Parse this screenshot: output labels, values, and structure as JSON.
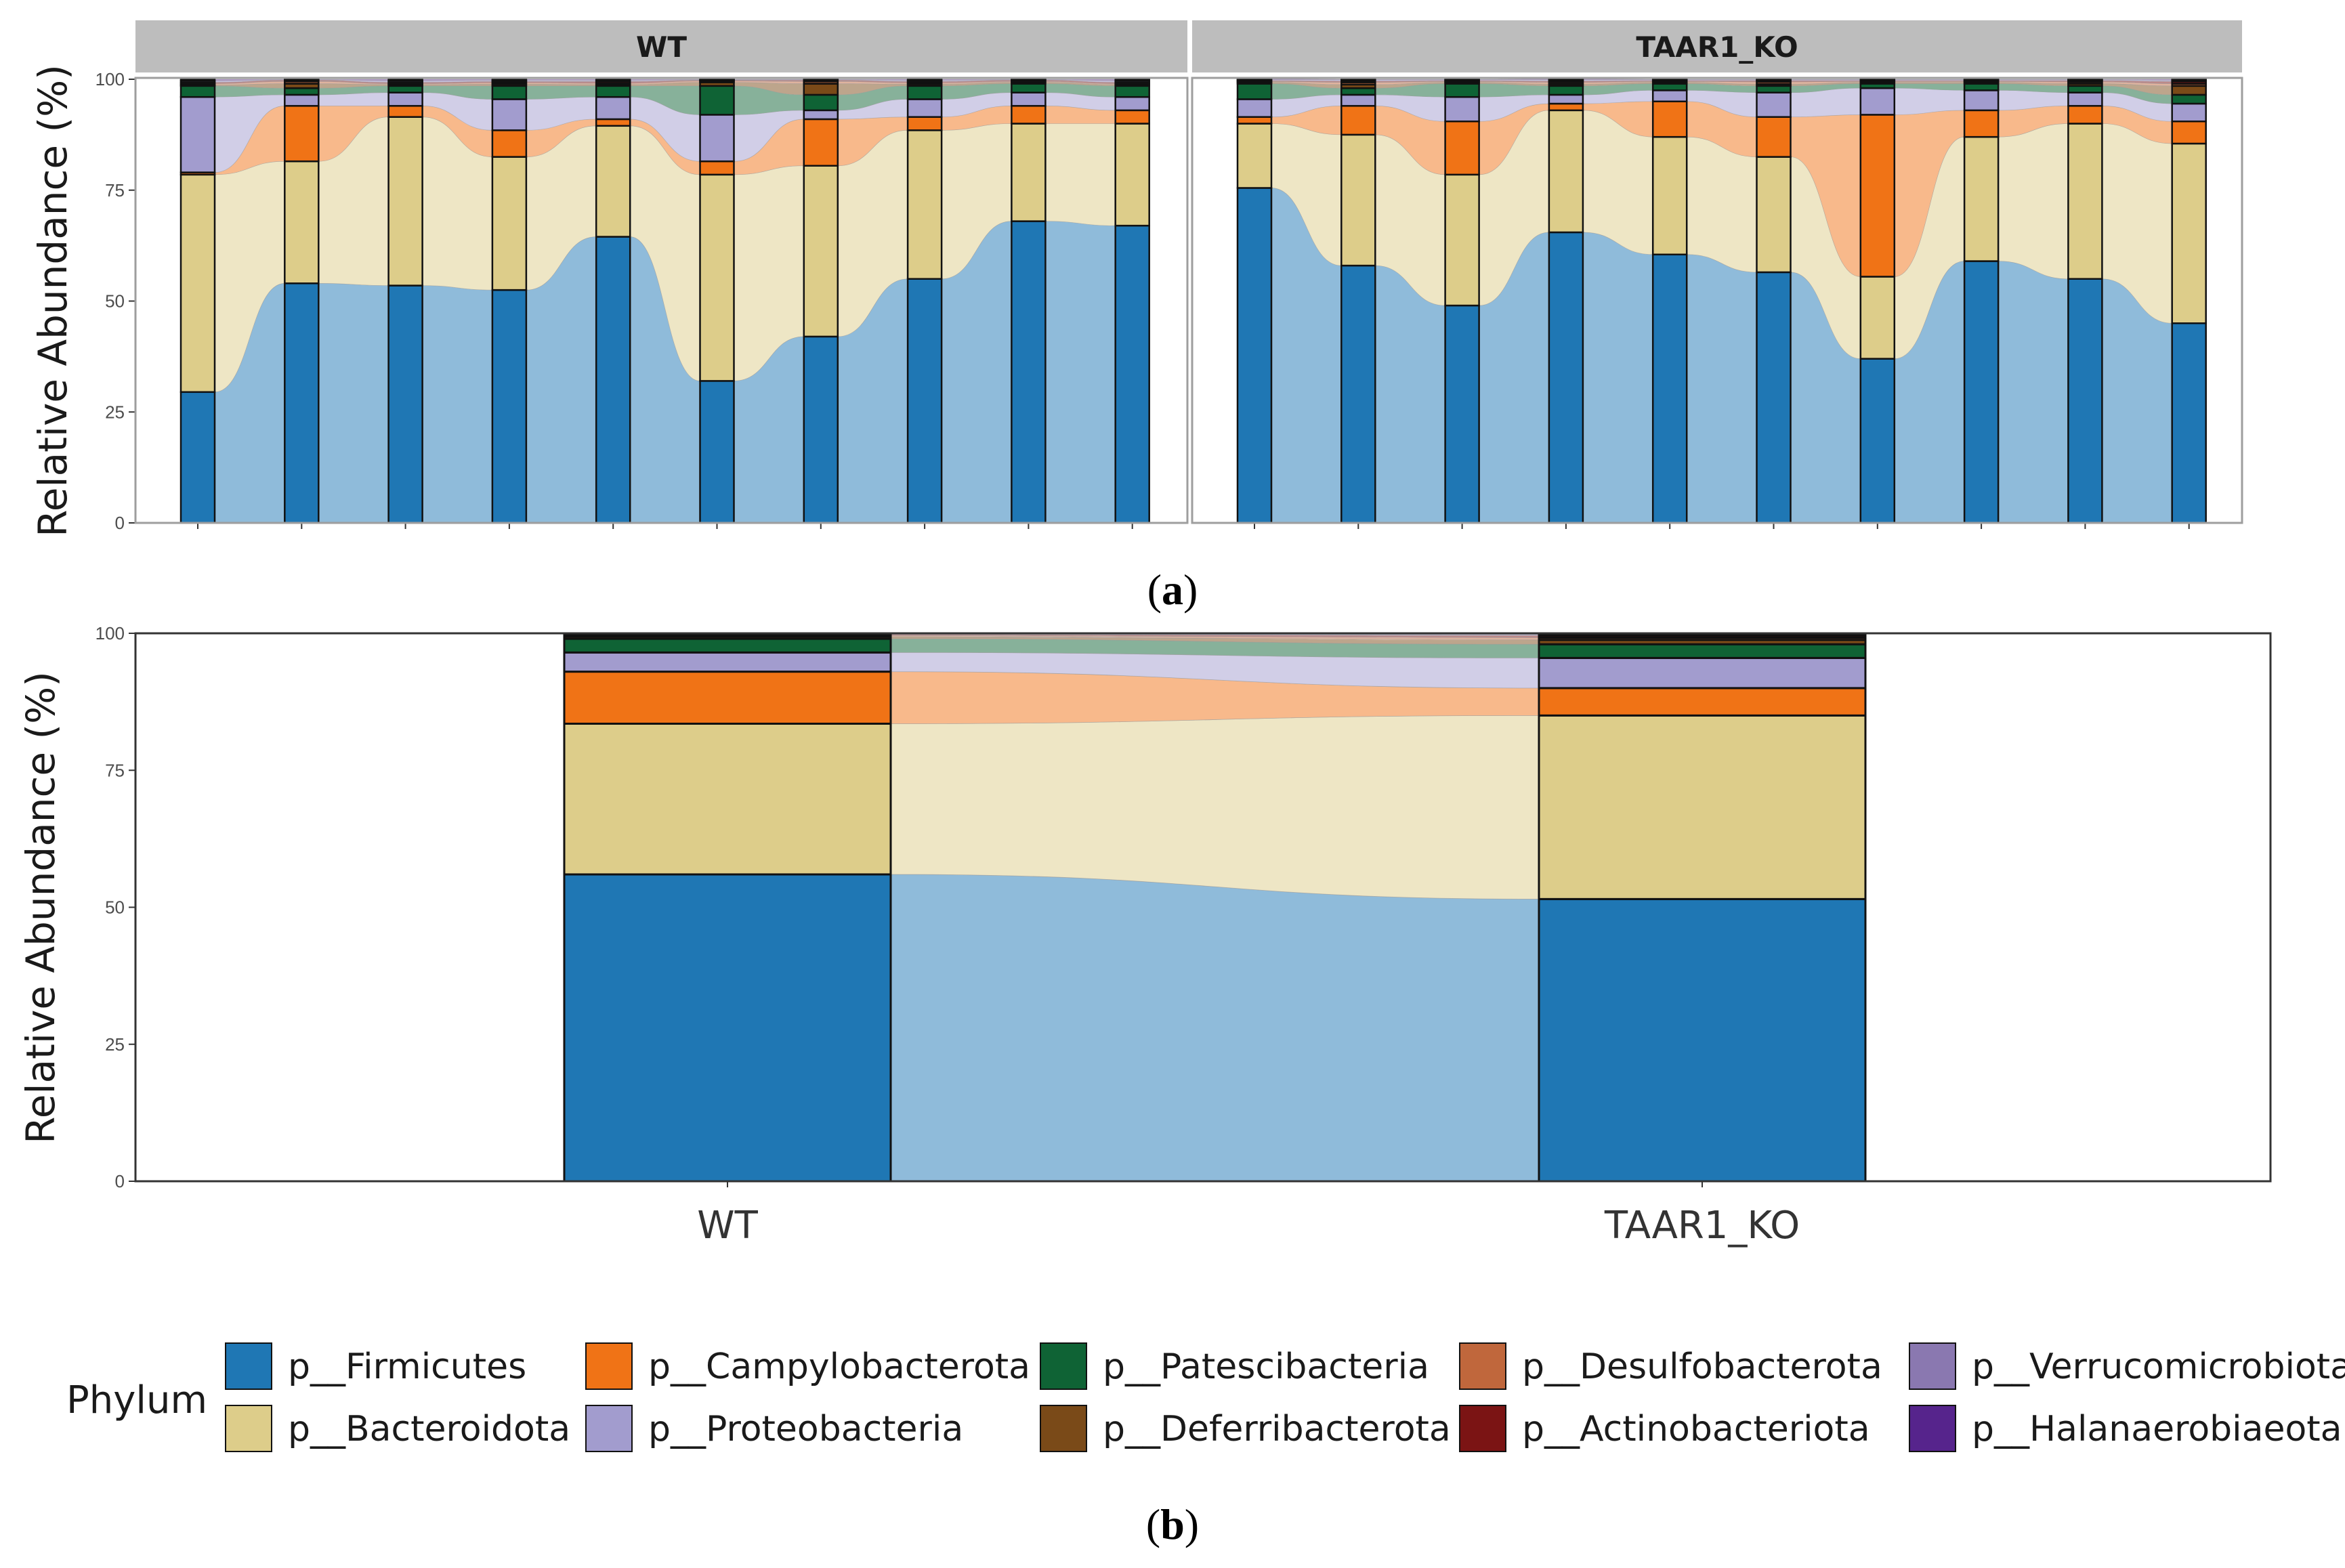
{
  "phyla": [
    "p__Firmicutes",
    "p__Bacteroidota",
    "p__Campylobacterota",
    "p__Proteobacteria",
    "p__Patescibacteria",
    "p__Deferribacterota",
    "p__Desulfobacterota",
    "p__Actinobacteriota",
    "p__Verrucomicrobiota",
    "p__Halanaerobiaeota"
  ],
  "colors": {
    "p__Firmicutes": "#1f77b4",
    "p__Bacteroidota": "#ddcd8a",
    "p__Campylobacterota": "#f07316",
    "p__Proteobacteria": "#a29cce",
    "p__Patescibacteria": "#0f6335",
    "p__Deferribacterota": "#7a4a18",
    "p__Desulfobacterota": "#c0673c",
    "p__Actinobacteriota": "#7b1414",
    "p__Verrucomicrobiota": "#8a78b0",
    "p__Halanaerobiaeota": "#56248c"
  },
  "panel_labels": {
    "a_open": "(",
    "a_letter": "a",
    "a_close": ")",
    "b_open": "(",
    "b_letter": "b",
    "b_close": ")"
  },
  "legend": {
    "title": "Phylum",
    "order": [
      "p__Firmicutes",
      "p__Bacteroidota",
      "p__Campylobacterota",
      "p__Proteobacteria",
      "p__Patescibacteria",
      "p__Deferribacterota",
      "p__Desulfobacterota",
      "p__Actinobacteriota",
      "p__Verrucomicrobiota",
      "p__Halanaerobiaeota"
    ]
  },
  "chart_data": [
    {
      "type": "bar",
      "stacked": true,
      "alluvium": true,
      "title": "",
      "ylabel": "Relative Abundance (%)",
      "xlabel": "",
      "ylim": [
        0,
        100
      ],
      "yticks": [
        0,
        25,
        50,
        75,
        100
      ],
      "facets": [
        {
          "name": "WT",
          "samples": 10,
          "series": [
            {
              "name": "p__Firmicutes",
              "values": [
                29.5,
                54,
                53.5,
                52.5,
                64.5,
                32,
                42,
                55,
                68,
                67
              ]
            },
            {
              "name": "p__Bacteroidota",
              "values": [
                49,
                27.5,
                38,
                30,
                25,
                46.5,
                38.5,
                33.5,
                22,
                23
              ]
            },
            {
              "name": "p__Campylobacterota",
              "values": [
                0.5,
                12.5,
                2.5,
                6,
                1.5,
                3,
                10.5,
                3,
                4,
                3
              ]
            },
            {
              "name": "p__Proteobacteria",
              "values": [
                17,
                2.5,
                3,
                7,
                5,
                10.5,
                2,
                4,
                3,
                3
              ]
            },
            {
              "name": "p__Patescibacteria",
              "values": [
                2.5,
                1.5,
                1.5,
                3,
                2.5,
                6.5,
                3.5,
                3,
                2,
                2.5
              ]
            },
            {
              "name": "p__Deferribacterota",
              "values": [
                0.2,
                1,
                0.3,
                0.4,
                0.3,
                0.8,
                2.5,
                0.4,
                0.3,
                0.3
              ]
            },
            {
              "name": "p__Desulfobacterota",
              "values": [
                0.3,
                0.5,
                0.2,
                0.3,
                0.3,
                0.3,
                0.5,
                0.3,
                0.2,
                0.2
              ]
            },
            {
              "name": "p__Actinobacteriota",
              "values": [
                0.3,
                0.3,
                0.3,
                0.3,
                0.4,
                0.2,
                0.3,
                0.3,
                0.3,
                0.3
              ]
            },
            {
              "name": "p__Verrucomicrobiota",
              "values": [
                0.4,
                0.1,
                0.4,
                0.3,
                0.3,
                0.1,
                0.1,
                0.3,
                0.1,
                0.4
              ]
            },
            {
              "name": "p__Halanaerobiaeota",
              "values": [
                0.3,
                0.1,
                0.3,
                0.2,
                0.2,
                0.1,
                0.1,
                0.2,
                0.1,
                0.3
              ]
            }
          ]
        },
        {
          "name": "TAAR1_KO",
          "samples": 10,
          "series": [
            {
              "name": "p__Firmicutes",
              "values": [
                75.5,
                58,
                49,
                65.5,
                60.5,
                56.5,
                37,
                59,
                55,
                45
              ]
            },
            {
              "name": "p__Bacteroidota",
              "values": [
                14.5,
                29.5,
                29.5,
                27.5,
                26.5,
                26,
                18.5,
                28,
                35,
                40.5
              ]
            },
            {
              "name": "p__Campylobacterota",
              "values": [
                1.5,
                6.5,
                12,
                1.5,
                8,
                9,
                36.5,
                6,
                4,
                5
              ]
            },
            {
              "name": "p__Proteobacteria",
              "values": [
                4,
                2.5,
                5.5,
                2,
                2.5,
                5.5,
                6,
                4.5,
                3,
                4
              ]
            },
            {
              "name": "p__Patescibacteria",
              "values": [
                3.5,
                1.5,
                3,
                2,
                1.5,
                1.5,
                1,
                1.5,
                1.5,
                2
              ]
            },
            {
              "name": "p__Deferribacterota",
              "values": [
                0.3,
                0.8,
                0.3,
                0.4,
                0.3,
                0.4,
                0.3,
                0.3,
                0.5,
                2
              ]
            },
            {
              "name": "p__Desulfobacterota",
              "values": [
                0.2,
                0.5,
                0.2,
                0.4,
                0.2,
                0.5,
                0.2,
                0.2,
                0.4,
                0.5
              ]
            },
            {
              "name": "p__Actinobacteriota",
              "values": [
                0.2,
                0.3,
                0.2,
                0.3,
                0.2,
                0.3,
                0.2,
                0.2,
                0.3,
                0.5
              ]
            },
            {
              "name": "p__Verrucomicrobiota",
              "values": [
                0.2,
                0.3,
                0.2,
                0.3,
                0.2,
                0.2,
                0.2,
                0.2,
                0.2,
                0.3
              ]
            },
            {
              "name": "p__Halanaerobiaeota",
              "values": [
                0.2,
                0.1,
                0.1,
                0.2,
                0.1,
                0.1,
                0.1,
                0.1,
                0.1,
                0.2
              ]
            }
          ]
        }
      ]
    },
    {
      "type": "bar",
      "stacked": true,
      "alluvium": true,
      "title": "",
      "ylabel": "Relative Abundance (%)",
      "xlabel": "",
      "ylim": [
        0,
        100
      ],
      "yticks": [
        0,
        25,
        50,
        75,
        100
      ],
      "categories": [
        "WT",
        "TAAR1_KO"
      ],
      "series": [
        {
          "name": "p__Firmicutes",
          "values": [
            56,
            51.5
          ]
        },
        {
          "name": "p__Bacteroidota",
          "values": [
            27.5,
            33.5
          ]
        },
        {
          "name": "p__Campylobacterota",
          "values": [
            9.5,
            5
          ]
        },
        {
          "name": "p__Proteobacteria",
          "values": [
            3.5,
            5.5
          ]
        },
        {
          "name": "p__Patescibacteria",
          "values": [
            2.5,
            2.5
          ]
        },
        {
          "name": "p__Deferribacterota",
          "values": [
            0.4,
            0.8
          ]
        },
        {
          "name": "p__Desulfobacterota",
          "values": [
            0.2,
            0.4
          ]
        },
        {
          "name": "p__Actinobacteriota",
          "values": [
            0.2,
            0.4
          ]
        },
        {
          "name": "p__Verrucomicrobiota",
          "values": [
            0.1,
            0.2
          ]
        },
        {
          "name": "p__Halanaerobiaeota",
          "values": [
            0.1,
            0.2
          ]
        }
      ]
    }
  ]
}
